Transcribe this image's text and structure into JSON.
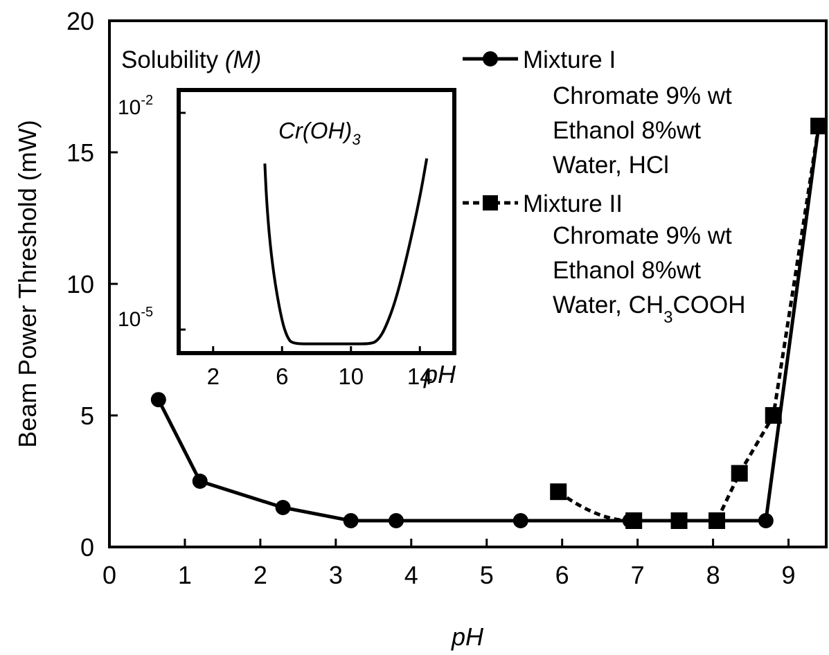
{
  "chart_data": [
    {
      "type": "line",
      "xlabel": "pH",
      "ylabel": "Beam Power Threshold (mW)",
      "xlim": [
        0,
        9.5
      ],
      "ylim": [
        0,
        20
      ],
      "xticks": [
        "0",
        "1",
        "2",
        "3",
        "4",
        "5",
        "6",
        "7",
        "8",
        "9"
      ],
      "yticks": [
        "0",
        "5",
        "10",
        "15",
        "20"
      ],
      "legend_position": "top-right",
      "series": [
        {
          "name": "Mixture I",
          "marker": "circle",
          "line": "solid",
          "description": [
            "Chromate 9% wt",
            "Ethanol 8%wt",
            "Water, HCl"
          ],
          "x": [
            0.65,
            1.2,
            2.3,
            3.2,
            3.8,
            5.45,
            6.9,
            8.7,
            9.4
          ],
          "y": [
            5.6,
            2.5,
            1.5,
            1.0,
            1.0,
            1.0,
            1.0,
            1.0,
            16.0
          ]
        },
        {
          "name": "Mixture II",
          "marker": "square",
          "line": "dashed",
          "description": [
            "Chromate 9% wt",
            "Ethanol 8%wt",
            "Water, CH",
            "3",
            "COOH"
          ],
          "x": [
            5.95,
            6.95,
            7.55,
            8.05,
            8.35,
            8.8,
            9.4
          ],
          "y": [
            2.1,
            1.0,
            1.0,
            1.0,
            2.8,
            5.0,
            16.0
          ]
        }
      ]
    },
    {
      "type": "line",
      "title": "Solubility (M)",
      "annotation": "Cr(OH)3",
      "xlabel": "pH",
      "xticks": [
        "2",
        "6",
        "10",
        "14"
      ],
      "yticks": [
        "10-2",
        "10-5"
      ],
      "yscale": "log",
      "ylim": [
        1e-06,
        0.1
      ],
      "xlim": [
        0,
        16
      ],
      "series": [
        {
          "name": "",
          "x": [
            5.0,
            5.1,
            5.3,
            5.6,
            6.0,
            6.3,
            6.6,
            8.0,
            10.0,
            11.2,
            11.6,
            12.0,
            12.6,
            13.3,
            14.0,
            14.4
          ],
          "y": [
            0.004,
            0.0008,
            0.00012,
            2e-05,
            4e-06,
            2e-06,
            1.5e-06,
            1.5e-06,
            1.5e-06,
            1.5e-06,
            1.8e-06,
            3e-06,
            1e-05,
            8e-05,
            0.0009,
            0.005
          ]
        }
      ]
    }
  ]
}
